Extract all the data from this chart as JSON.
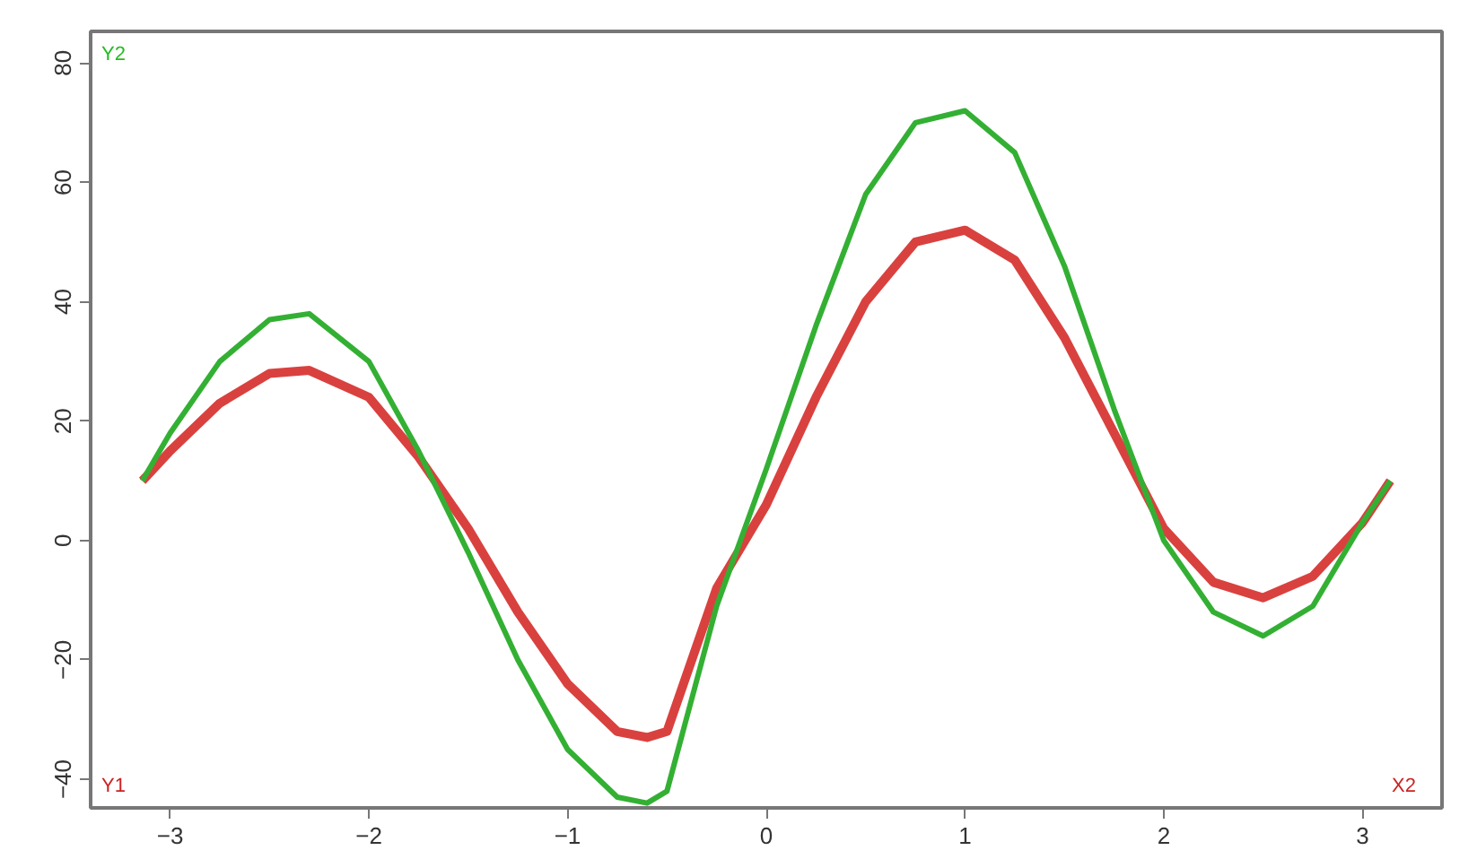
{
  "chart_data": {
    "type": "line",
    "x": [
      -3.14,
      -3,
      -2.75,
      -2.5,
      -2.3,
      -2,
      -1.75,
      -1.5,
      -1.25,
      -1,
      -0.75,
      -0.6,
      -0.5,
      -0.25,
      0,
      0.25,
      0.5,
      0.75,
      1,
      1.25,
      1.5,
      1.75,
      2,
      2.25,
      2.5,
      2.75,
      3,
      3.14
    ],
    "series": [
      {
        "color": "#d9413f",
        "values": [
          10,
          15,
          23,
          28,
          28.5,
          24,
          14,
          2,
          -12,
          -24,
          -32,
          -33,
          -32,
          -8,
          6,
          24,
          40,
          50,
          52,
          47,
          34,
          18,
          2,
          -7,
          -9.6,
          -6,
          3,
          10
        ]
      },
      {
        "color": "#33b033",
        "values": [
          10,
          18,
          30,
          37,
          38,
          30,
          15,
          -2,
          -20,
          -35,
          -43,
          -44,
          -42,
          -11,
          12,
          36,
          58,
          70,
          72,
          65,
          46,
          22,
          0,
          -12,
          -16,
          -11,
          3,
          10
        ]
      }
    ],
    "xlim": [
      -3.4,
      3.4
    ],
    "ylim": [
      -44.8,
      85.3
    ],
    "xticks": [
      -3,
      -2,
      -1,
      0,
      1,
      2,
      3
    ],
    "yticks": [
      -40,
      -20,
      0,
      20,
      40,
      60,
      80
    ],
    "annotations": [
      "Y2",
      "Y1",
      "X2"
    ],
    "grid": false,
    "line_style": "solid",
    "marker": "none"
  }
}
